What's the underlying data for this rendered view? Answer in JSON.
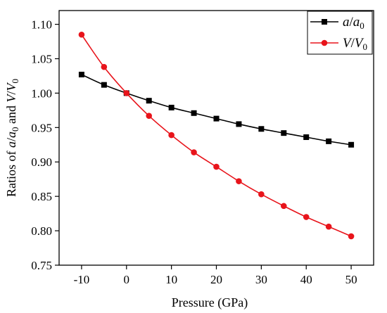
{
  "chart_data": {
    "type": "line",
    "title": "",
    "xlabel": "Pressure (GPa)",
    "ylabel_parts": [
      "Ratios of ",
      "a",
      "/",
      "a",
      "0",
      " and ",
      "V",
      "/",
      "V",
      "0"
    ],
    "xlim": [
      -15,
      55
    ],
    "ylim": [
      0.75,
      1.12
    ],
    "xticks": [
      -10,
      0,
      10,
      20,
      30,
      40,
      50
    ],
    "yticks": [
      0.75,
      0.8,
      0.85,
      0.9,
      0.95,
      1.0,
      1.05,
      1.1
    ],
    "xtick_labels": [
      "-10",
      "0",
      "10",
      "20",
      "30",
      "40",
      "50"
    ],
    "ytick_labels": [
      "0.75",
      "0.80",
      "0.85",
      "0.90",
      "0.95",
      "1.00",
      "1.05",
      "1.10"
    ],
    "grid": false,
    "legend_position": "top-right",
    "x": [
      -10,
      -5,
      0,
      5,
      10,
      15,
      20,
      25,
      30,
      35,
      40,
      45,
      50
    ],
    "series": [
      {
        "name_parts": [
          "a",
          "/",
          "a",
          "0"
        ],
        "marker": "square",
        "color": "#000000",
        "values": [
          1.027,
          1.012,
          1.0,
          0.989,
          0.979,
          0.971,
          0.963,
          0.955,
          0.948,
          0.942,
          0.936,
          0.93,
          0.925
        ]
      },
      {
        "name_parts": [
          "V",
          "/",
          "V",
          "0"
        ],
        "marker": "circle",
        "color": "#e8141b",
        "values": [
          1.085,
          1.038,
          1.0,
          0.967,
          0.939,
          0.914,
          0.893,
          0.872,
          0.853,
          0.836,
          0.82,
          0.806,
          0.792
        ]
      }
    ]
  }
}
